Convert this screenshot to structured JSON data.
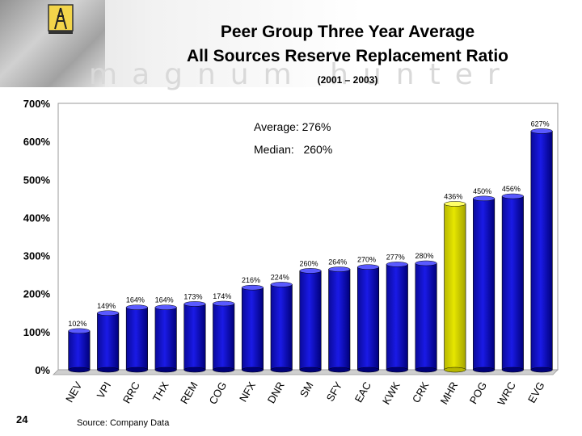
{
  "header": {
    "title_line1": "Peer Group Three Year Average",
    "title_line2": "All Sources Reserve Replacement Ratio",
    "subtitle": "(2001 – 2003)",
    "watermark": "magnum hunter"
  },
  "chart_data": {
    "type": "bar",
    "categories": [
      "NEV",
      "VPI",
      "RRC",
      "THX",
      "REM",
      "COG",
      "NFX",
      "DNR",
      "SM",
      "SFY",
      "EAC",
      "KWK",
      "CRK",
      "MHR",
      "POG",
      "WRC",
      "EVG"
    ],
    "values": [
      102,
      149,
      164,
      164,
      173,
      174,
      216,
      224,
      260,
      264,
      270,
      277,
      280,
      436,
      450,
      456,
      627
    ],
    "data_labels": [
      "102%",
      "149%",
      "164%",
      "164%",
      "173%",
      "174%",
      "216%",
      "224%",
      "260%",
      "264%",
      "270%",
      "277%",
      "280%",
      "436%",
      "450%",
      "456%",
      "627%"
    ],
    "highlight_category": "MHR",
    "bar_color": "#1a1ae6",
    "highlight_color": "#e6e600",
    "ylim": [
      0,
      700
    ],
    "yticks": [
      "0%",
      "100%",
      "200%",
      "300%",
      "400%",
      "500%",
      "600%",
      "700%"
    ],
    "annotations": {
      "average": "Average: 276%",
      "median": "Median:   260%"
    },
    "grid": false
  },
  "footer": {
    "page_number": "24",
    "source": "Source:  Company Data"
  }
}
